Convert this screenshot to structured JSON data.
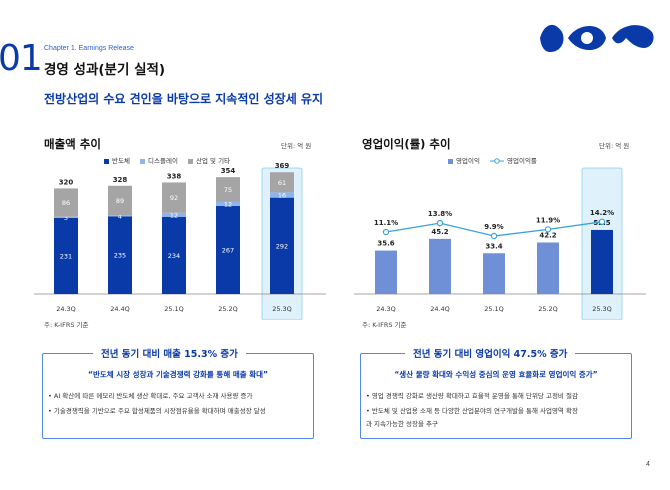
{
  "header": {
    "section_number": "01",
    "chapter": "Chapter 1. Earnings Release",
    "title": "경영 성과(분기 실적)",
    "subtitle": "전방산업의 수요 견인을 바탕으로 지속적인 성장세 유지"
  },
  "left_panel": {
    "title": "매출액 추이",
    "unit": "단위: 억 원",
    "note": "주: K-IFRS 기준"
  },
  "right_panel": {
    "title": "영업이익(률) 추이",
    "unit": "단위: 억 원",
    "note": "주: K-IFRS 기준"
  },
  "colors": {
    "semiconductor": "#0a3aa8",
    "display": "#8fb4ec",
    "industrial": "#a5a5a5",
    "op_income": "#6f8fd6",
    "op_income_latest": "#0a3aa8",
    "op_margin_line": "#3aa0e0",
    "highlight": "#dff1fb"
  },
  "chart_data": [
    {
      "type": "bar",
      "stacked": true,
      "title": "매출액 추이",
      "unit": "단위: 억 원",
      "categories": [
        "24.3Q",
        "24.4Q",
        "25.1Q",
        "25.2Q",
        "25.3Q"
      ],
      "series": [
        {
          "name": "반도체",
          "values": [
            231,
            235,
            234,
            267,
            292
          ]
        },
        {
          "name": "디스플레이",
          "values": [
            3,
            4,
            12,
            12,
            16
          ]
        },
        {
          "name": "산업 및 기타",
          "values": [
            86,
            89,
            92,
            75,
            61
          ]
        }
      ],
      "totals": [
        320,
        328,
        338,
        354,
        369
      ],
      "highlight_category": "25.3Q",
      "legend_position": "top",
      "grid": false
    },
    {
      "type": "bar",
      "title": "영업이익(률) 추이",
      "unit": "단위: 억 원",
      "categories": [
        "24.3Q",
        "24.4Q",
        "25.1Q",
        "25.2Q",
        "25.3Q"
      ],
      "series": [
        {
          "name": "영업이익",
          "type": "bar",
          "values": [
            35.6,
            45.2,
            33.4,
            42.2,
            52.5
          ]
        },
        {
          "name": "영업이익률",
          "type": "line",
          "values": [
            11.1,
            13.8,
            9.9,
            11.9,
            14.2
          ],
          "labels": [
            "11.1%",
            "13.8%",
            "9.9%",
            "11.9%",
            "14.2%"
          ]
        }
      ],
      "highlight_category": "25.3Q",
      "legend_position": "top",
      "grid": false
    }
  ],
  "box_left": {
    "title": "전년 동기 대비 매출 15.3% 증가",
    "quote": "“반도체 시장 성장과 기술경쟁력 강화를 통해 매출 확대”",
    "bullets": [
      "• AI 확산에 따른 메모리 반도체 생산 확대로, 주요 고객사 소재 사용량 증가",
      "• 기술경쟁력을 기반으로 주요 합성제품의 시장점유율을 확대하며 매출성장 달성"
    ]
  },
  "box_right": {
    "title": "전년 동기 대비 영업이익 47.5% 증가",
    "quote": "“생산 물량 확대와 수익성 중심의 운영 효율화로 영업이익 증가”",
    "bullets": [
      "• 영업 경쟁력 강화로 생산량 확대하고 효율적 운영을 통해 단위당 고정비 절감",
      "• 반도체 및 산업용 소재 등 다양한 산업분야의 연구개발을 통해 사업영역 확장",
      "  과 지속가능한 성장을 추구"
    ]
  },
  "footer": {
    "page_number": "4"
  }
}
